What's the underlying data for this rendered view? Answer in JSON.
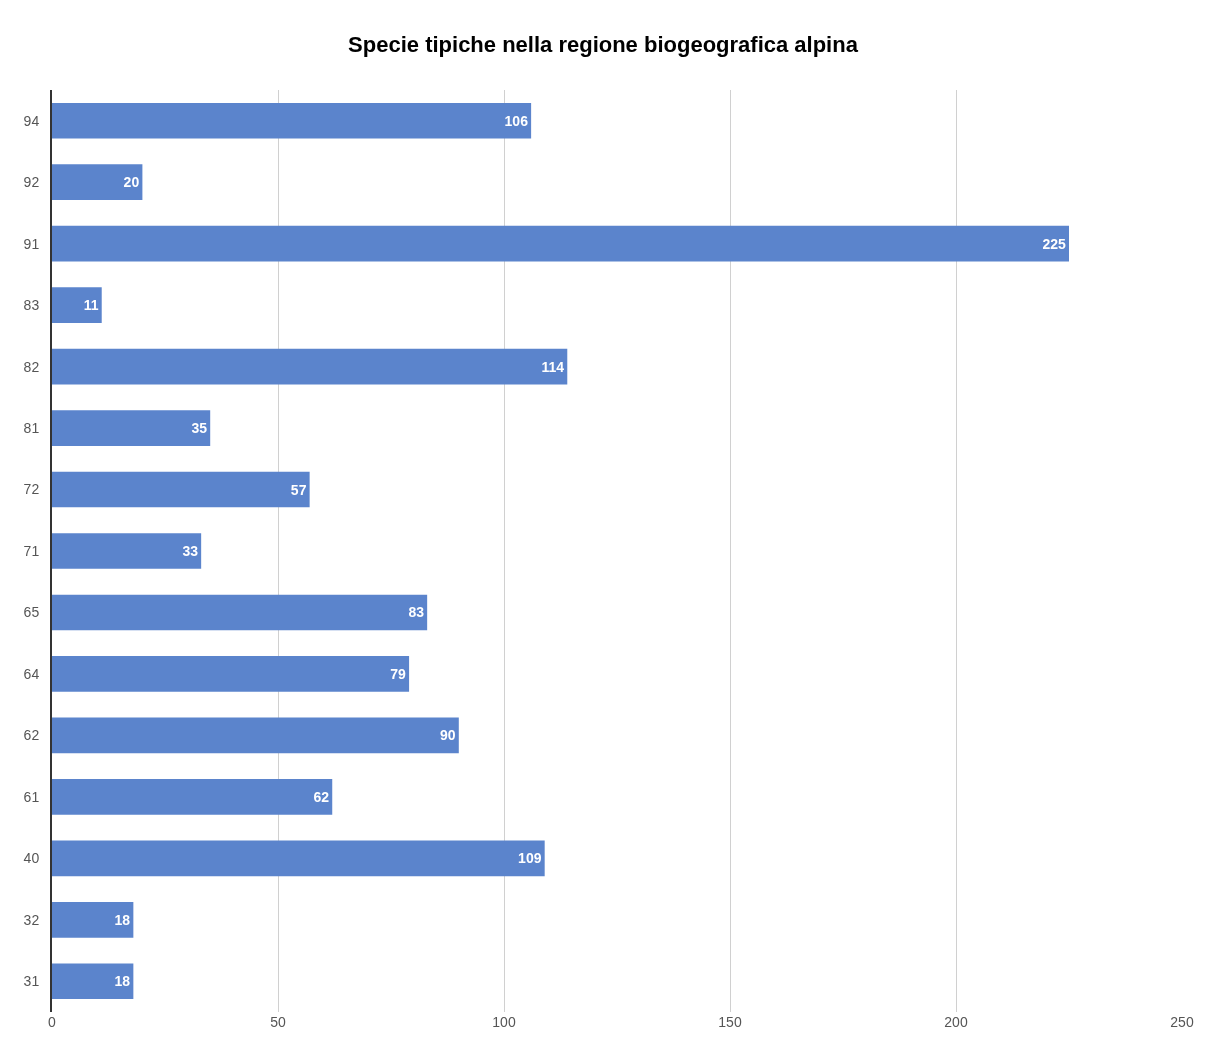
{
  "chart_data": {
    "type": "bar",
    "orientation": "horizontal",
    "title": "Specie tipiche nella regione biogeografica alpina",
    "categories": [
      "94",
      "92",
      "91",
      "83",
      "82",
      "81",
      "72",
      "71",
      "65",
      "64",
      "62",
      "61",
      "40",
      "32",
      "31"
    ],
    "values": [
      106,
      20,
      225,
      11,
      114,
      35,
      57,
      33,
      83,
      79,
      90,
      62,
      109,
      18,
      18
    ],
    "color": "#5b84cc",
    "xlim": [
      0,
      250
    ],
    "xticks": [
      0,
      50,
      100,
      150,
      200,
      250
    ],
    "grid": "x",
    "data_labels": true
  }
}
